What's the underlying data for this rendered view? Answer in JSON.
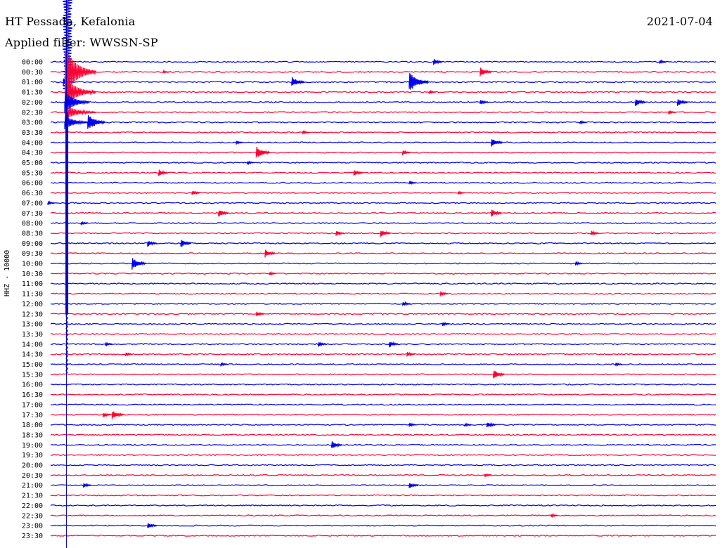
{
  "header": {
    "station": "HT Pessada, Kefalonia",
    "filter": "Applied filter: WWSSN-SP",
    "date": "2021-07-04"
  },
  "channel_label": "HHZ - 10000",
  "colors": {
    "blue": "#0000ee",
    "red": "#ff0033",
    "marker": "#0000aa"
  },
  "chart_data": {
    "type": "line",
    "subtype": "helicorder",
    "title": "HT Pessada, Kefalonia",
    "subtitle": "Applied filter: WWSSN-SP",
    "date": "2021-07-04",
    "ylabel": "HHZ - 10000",
    "row_minutes": 30,
    "x_minutes_per_row": [
      0,
      30
    ],
    "row_labels": [
      "00:00",
      "00:30",
      "01:00",
      "01:30",
      "02:00",
      "02:30",
      "03:00",
      "03:30",
      "04:00",
      "04:30",
      "05:00",
      "05:30",
      "06:00",
      "06:30",
      "07:00",
      "07:30",
      "08:00",
      "08:30",
      "09:00",
      "09:30",
      "10:00",
      "10:30",
      "11:00",
      "11:30",
      "12:00",
      "12:30",
      "13:00",
      "13:30",
      "14:00",
      "14:30",
      "15:00",
      "15:30",
      "16:00",
      "16:30",
      "17:00",
      "17:30",
      "18:00",
      "18:30",
      "19:00",
      "19:30",
      "20:00",
      "20:30",
      "21:00",
      "21:30",
      "22:00",
      "22:30",
      "23:00",
      "23:30"
    ],
    "series": [
      {
        "color_key": "blue",
        "rows": "even"
      },
      {
        "color_key": "red",
        "rows": "odd"
      }
    ],
    "marker_minute": 0.7,
    "main_event": {
      "row": 0,
      "minute": 0.7,
      "extends_rows": 25
    },
    "events": [
      {
        "row": 0,
        "minute": 17.4,
        "amp": 5
      },
      {
        "row": 0,
        "minute": 27.6,
        "amp": 3
      },
      {
        "row": 1,
        "minute": 19.5,
        "amp": 7
      },
      {
        "row": 1,
        "minute": 5.2,
        "amp": 2
      },
      {
        "row": 2,
        "minute": 11.0,
        "amp": 8
      },
      {
        "row": 2,
        "minute": 16.3,
        "amp": 14
      },
      {
        "row": 2,
        "minute": 0.7,
        "amp": 6
      },
      {
        "row": 3,
        "minute": 17.2,
        "amp": 3
      },
      {
        "row": 4,
        "minute": 26.5,
        "amp": 6
      },
      {
        "row": 4,
        "minute": 28.4,
        "amp": 6
      },
      {
        "row": 4,
        "minute": 19.5,
        "amp": 4
      },
      {
        "row": 5,
        "minute": 28.0,
        "amp": 3
      },
      {
        "row": 6,
        "minute": 1.8,
        "amp": 12
      },
      {
        "row": 6,
        "minute": 24.0,
        "amp": 3
      },
      {
        "row": 7,
        "minute": 11.5,
        "amp": 3
      },
      {
        "row": 8,
        "minute": 20.0,
        "amp": 7
      },
      {
        "row": 8,
        "minute": 8.5,
        "amp": 3
      },
      {
        "row": 9,
        "minute": 9.4,
        "amp": 9
      },
      {
        "row": 9,
        "minute": 16.0,
        "amp": 4
      },
      {
        "row": 10,
        "minute": 9.0,
        "amp": 3
      },
      {
        "row": 11,
        "minute": 5.0,
        "amp": 5
      },
      {
        "row": 11,
        "minute": 13.8,
        "amp": 5
      },
      {
        "row": 12,
        "minute": 16.3,
        "amp": 3
      },
      {
        "row": 13,
        "minute": 6.5,
        "amp": 4
      },
      {
        "row": 13,
        "minute": 18.5,
        "amp": 3
      },
      {
        "row": 14,
        "minute": 0.0,
        "amp": 3
      },
      {
        "row": 15,
        "minute": 7.7,
        "amp": 6
      },
      {
        "row": 15,
        "minute": 20.0,
        "amp": 6
      },
      {
        "row": 16,
        "minute": 1.5,
        "amp": 3
      },
      {
        "row": 17,
        "minute": 15.0,
        "amp": 6
      },
      {
        "row": 17,
        "minute": 13.0,
        "amp": 4
      },
      {
        "row": 17,
        "minute": 24.5,
        "amp": 4
      },
      {
        "row": 18,
        "minute": 4.5,
        "amp": 5
      },
      {
        "row": 18,
        "minute": 6.0,
        "amp": 6
      },
      {
        "row": 19,
        "minute": 9.8,
        "amp": 6
      },
      {
        "row": 20,
        "minute": 3.8,
        "amp": 9
      },
      {
        "row": 20,
        "minute": 23.8,
        "amp": 3
      },
      {
        "row": 21,
        "minute": 10.0,
        "amp": 3
      },
      {
        "row": 23,
        "minute": 17.7,
        "amp": 4
      },
      {
        "row": 24,
        "minute": 16.0,
        "amp": 4
      },
      {
        "row": 25,
        "minute": 9.4,
        "amp": 4
      },
      {
        "row": 26,
        "minute": 17.8,
        "amp": 3
      },
      {
        "row": 28,
        "minute": 12.2,
        "amp": 4
      },
      {
        "row": 28,
        "minute": 15.4,
        "amp": 5
      },
      {
        "row": 28,
        "minute": 2.6,
        "amp": 3
      },
      {
        "row": 29,
        "minute": 16.2,
        "amp": 4
      },
      {
        "row": 29,
        "minute": 3.5,
        "amp": 3
      },
      {
        "row": 30,
        "minute": 7.8,
        "amp": 3
      },
      {
        "row": 30,
        "minute": 25.6,
        "amp": 3
      },
      {
        "row": 31,
        "minute": 20.1,
        "amp": 7
      },
      {
        "row": 35,
        "minute": 2.5,
        "amp": 4
      },
      {
        "row": 35,
        "minute": 2.9,
        "amp": 7
      },
      {
        "row": 36,
        "minute": 19.8,
        "amp": 5
      },
      {
        "row": 36,
        "minute": 18.8,
        "amp": 3
      },
      {
        "row": 36,
        "minute": 16.3,
        "amp": 3
      },
      {
        "row": 38,
        "minute": 12.8,
        "amp": 6
      },
      {
        "row": 41,
        "minute": 19.7,
        "amp": 3
      },
      {
        "row": 42,
        "minute": 16.3,
        "amp": 5
      },
      {
        "row": 42,
        "minute": 1.6,
        "amp": 4
      },
      {
        "row": 45,
        "minute": 22.7,
        "amp": 3
      },
      {
        "row": 46,
        "minute": 4.5,
        "amp": 5
      }
    ]
  }
}
